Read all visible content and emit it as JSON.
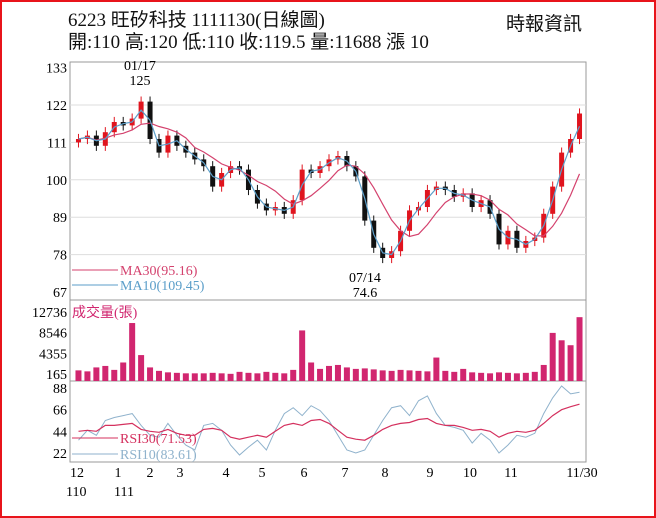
{
  "header": {
    "title": "6223  旺矽科技 1111130(日線圖)",
    "summary": "開:110 高:120 低:110 收:119.5 量:11688 漲 10",
    "source": "時報資訊"
  },
  "colors": {
    "up": "#e0141e",
    "down": "#111111",
    "ma30": "#d4426e",
    "ma10": "#5b9ec9",
    "volume": "#d1266f",
    "rsi30": "#d4305e",
    "rsi10": "#8fb2cc",
    "border": "#e8141b"
  },
  "chart_data": {
    "type": "candlestick",
    "price_panel": {
      "yticks": [
        133,
        122,
        111,
        100,
        89,
        78,
        67
      ],
      "ylim": [
        67,
        133
      ],
      "annotations": [
        {
          "date": "01/17",
          "value": "125",
          "label": "01/17",
          "value_label": "125"
        },
        {
          "date": "07/14",
          "value": "74.6",
          "label": "07/14",
          "value_label": "74.6"
        }
      ],
      "legend": [
        {
          "name": "MA30(95.16)",
          "color": "#d4426e"
        },
        {
          "name": "MA10(109.45)",
          "color": "#5b9ec9"
        }
      ],
      "close": [
        112,
        113,
        110,
        114,
        117,
        116,
        118,
        123,
        112,
        108,
        113,
        110,
        108,
        106,
        104,
        98,
        102,
        104,
        103,
        97,
        93,
        91,
        92,
        90,
        94,
        103,
        102,
        104,
        106,
        107,
        104,
        101,
        88,
        80,
        77,
        79,
        85,
        91,
        92,
        97,
        98,
        97,
        95,
        96,
        92,
        94,
        90,
        81,
        85,
        80,
        82,
        83,
        90,
        98,
        108,
        112,
        119.5
      ]
    },
    "volume_panel": {
      "title": "成交量(張)",
      "yticks": [
        12736,
        8546,
        4355,
        165
      ],
      "ylim": [
        165,
        12736
      ],
      "values": [
        900,
        700,
        1500,
        1800,
        1000,
        2500,
        10500,
        4000,
        1500,
        800,
        500,
        400,
        300,
        300,
        300,
        400,
        300,
        200,
        600,
        400,
        300,
        600,
        400,
        300,
        1000,
        9000,
        2500,
        1200,
        1800,
        2000,
        1500,
        1200,
        1300,
        1100,
        900,
        800,
        1000,
        900,
        800,
        700,
        3500,
        800,
        600,
        1200,
        500,
        400,
        300,
        500,
        400,
        300,
        400,
        600,
        2000,
        8500,
        7000,
        6000,
        11688
      ]
    },
    "rsi_panel": {
      "yticks": [
        88,
        66,
        44,
        22
      ],
      "ylim": [
        22,
        88
      ],
      "legend": [
        {
          "name": "RSI30(71.53)",
          "color": "#d4305e"
        },
        {
          "name": "RSI10(83.61)",
          "color": "#8fb2cc"
        }
      ],
      "rsi10": [
        35,
        45,
        40,
        55,
        58,
        60,
        62,
        50,
        40,
        38,
        52,
        40,
        30,
        25,
        50,
        52,
        45,
        30,
        20,
        28,
        35,
        25,
        45,
        62,
        68,
        60,
        70,
        65,
        55,
        40,
        25,
        22,
        25,
        40,
        55,
        68,
        70,
        60,
        75,
        80,
        62,
        50,
        48,
        45,
        32,
        42,
        35,
        22,
        30,
        40,
        38,
        42,
        62,
        78,
        90,
        82,
        83.61
      ],
      "rsi30": [
        44,
        45,
        44,
        50,
        50,
        51,
        52,
        46,
        44,
        43,
        46,
        42,
        40,
        40,
        46,
        47,
        45,
        38,
        36,
        38,
        40,
        38,
        44,
        50,
        52,
        50,
        55,
        56,
        52,
        45,
        38,
        36,
        35,
        40,
        46,
        50,
        52,
        53,
        56,
        57,
        52,
        50,
        50,
        48,
        45,
        46,
        44,
        38,
        42,
        44,
        43,
        45,
        52,
        60,
        66,
        69,
        71.53
      ]
    },
    "x_axis": {
      "months": [
        "12",
        "1",
        "2",
        "3",
        "4",
        "5",
        "6",
        "7",
        "8",
        "9",
        "10",
        "11",
        "11/30"
      ],
      "years": [
        "110",
        "111"
      ]
    }
  }
}
